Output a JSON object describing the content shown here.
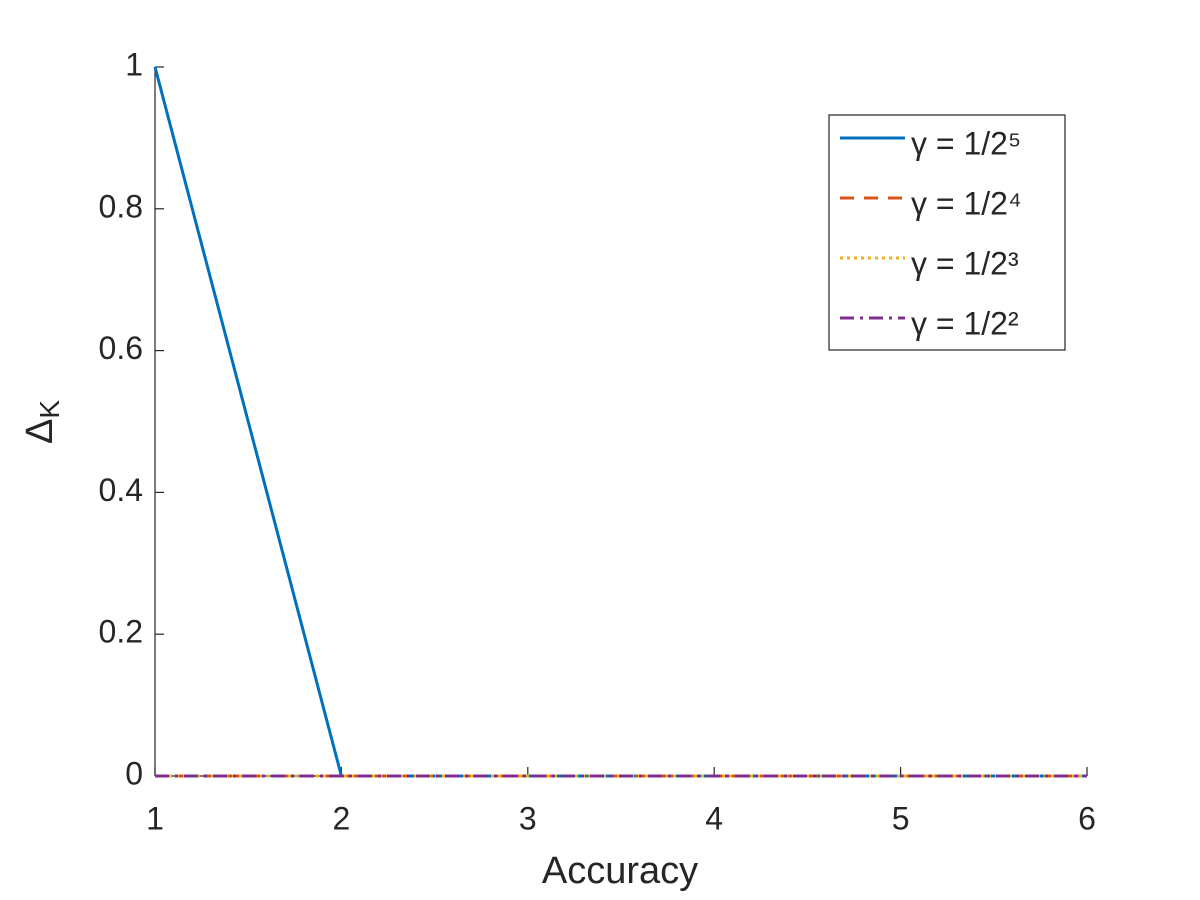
{
  "chart_data": {
    "type": "line",
    "xlabel": "Accuracy",
    "ylabel": [
      "Δ",
      "K"
    ],
    "x": [
      1,
      2,
      3,
      4,
      5,
      6
    ],
    "series": [
      {
        "name": "γ = 1/2⁵",
        "color": "#0072BD",
        "dash": "solid",
        "values": [
          1,
          0,
          0,
          0,
          0,
          0
        ]
      },
      {
        "name": "γ = 1/2⁴",
        "color": "#D95319",
        "dash": "dashed",
        "values": [
          0,
          0,
          0,
          0,
          0,
          0
        ]
      },
      {
        "name": "γ = 1/2³",
        "color": "#EDB120",
        "dash": "dotted",
        "values": [
          0,
          0,
          0,
          0,
          0,
          0
        ]
      },
      {
        "name": "γ = 1/2²",
        "color": "#7E2F8E",
        "dash": "dashdot",
        "values": [
          0,
          0,
          0,
          0,
          0,
          0
        ]
      }
    ],
    "xlim": [
      1,
      6
    ],
    "xticks": [
      1,
      2,
      3,
      4,
      5,
      6
    ],
    "ylim": [
      0,
      1
    ],
    "yticks": [
      0,
      0.2,
      0.4,
      0.6,
      0.8,
      1
    ],
    "grid": false,
    "legend": "northeast"
  }
}
